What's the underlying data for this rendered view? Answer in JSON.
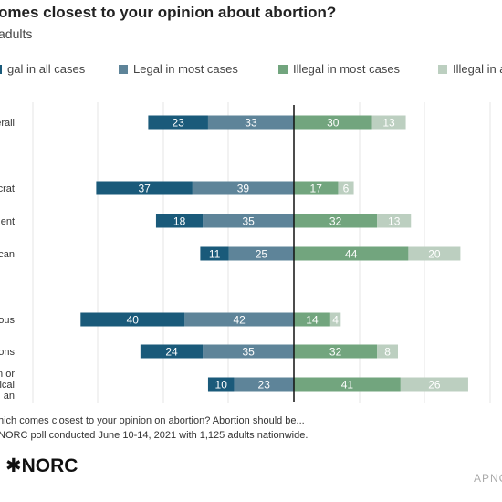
{
  "header": {
    "title": "omes closest to your opinion about abortion?",
    "subtitle": "adults"
  },
  "chart_data": {
    "type": "bar",
    "orientation": "horizontal-diverging",
    "categories": [
      "verall",
      "ocrat",
      "ndent",
      "lican",
      "gious",
      "tions",
      "ain or\ndical\nan"
    ],
    "series": [
      {
        "name": "gal in all cases",
        "color": "#1a5a7a",
        "values": [
          23,
          37,
          18,
          11,
          40,
          24,
          10
        ]
      },
      {
        "name": "Legal in most cases",
        "color": "#5e8499",
        "values": [
          33,
          39,
          35,
          25,
          42,
          35,
          23
        ]
      },
      {
        "name": "Illegal in most cases",
        "color": "#72a57e",
        "values": [
          30,
          17,
          32,
          44,
          14,
          32,
          41
        ]
      },
      {
        "name": "Illegal in al",
        "color": "#bccfc0",
        "values": [
          13,
          6,
          13,
          20,
          4,
          8,
          26
        ]
      }
    ],
    "grid": true,
    "legend": "top"
  },
  "footer": {
    "note1": "hich comes closest to your opinion on abortion? Abortion should be...",
    "note2": "NORC poll conducted June 10-14, 2021 with 1,125 adults nationwide.",
    "logo": "✱NORC",
    "credit": "APNC"
  }
}
